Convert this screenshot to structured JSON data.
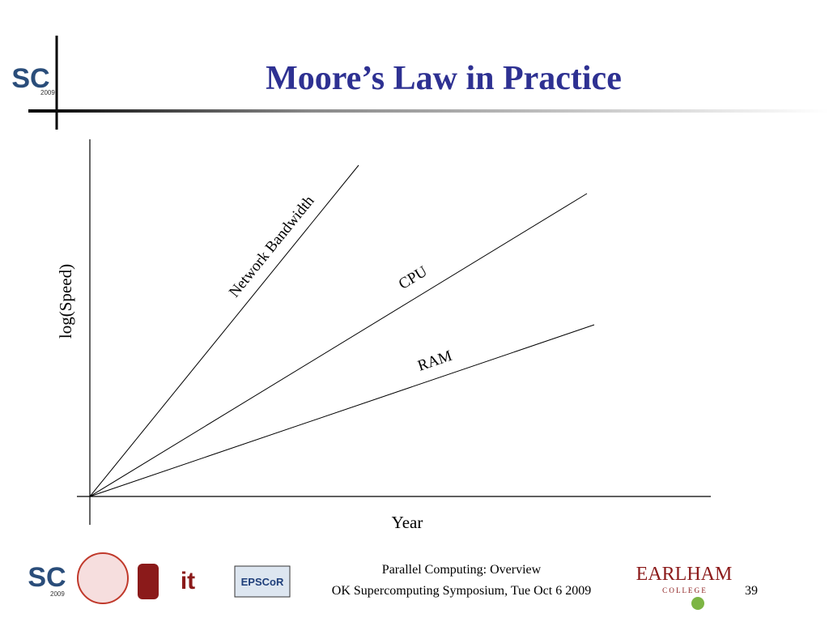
{
  "header": {
    "title": "Moore’s Law in Practice"
  },
  "figure": {
    "y_axis_label": "log(Speed)",
    "x_axis_label": "Year",
    "lines": [
      {
        "label": "Network Bandwidth"
      },
      {
        "label": "CPU"
      },
      {
        "label": "RAM"
      }
    ]
  },
  "footer": {
    "line1": "Parallel Computing: Overview",
    "line2": "OK Supercomputing Symposium, Tue Oct 6 2009",
    "page": "39"
  },
  "logos": {
    "sc": "SC",
    "sc_year": "2009",
    "earlham": "EARLHAM",
    "college": "C O L L E G E",
    "epscor": "EPSCoR",
    "it": "it"
  }
}
